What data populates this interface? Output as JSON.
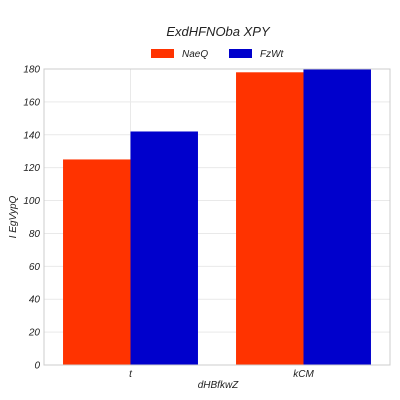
{
  "chart_data": {
    "type": "bar",
    "title": "ExdHFNOba XPY",
    "xlabel": "dHBfkwZ",
    "ylabel": "I EgVypQ",
    "categories": [
      "t",
      "kCM"
    ],
    "series": [
      {
        "name": "NaeQ",
        "color": "#ff3300",
        "values": [
          125,
          178
        ]
      },
      {
        "name": "FzWt",
        "color": "#0000cc",
        "values": [
          142,
          180
        ]
      }
    ],
    "ylim": [
      0,
      180
    ],
    "yticks": [
      0,
      20,
      40,
      60,
      80,
      100,
      120,
      140,
      160,
      180
    ],
    "grid": true,
    "legend_position": "top-center"
  }
}
